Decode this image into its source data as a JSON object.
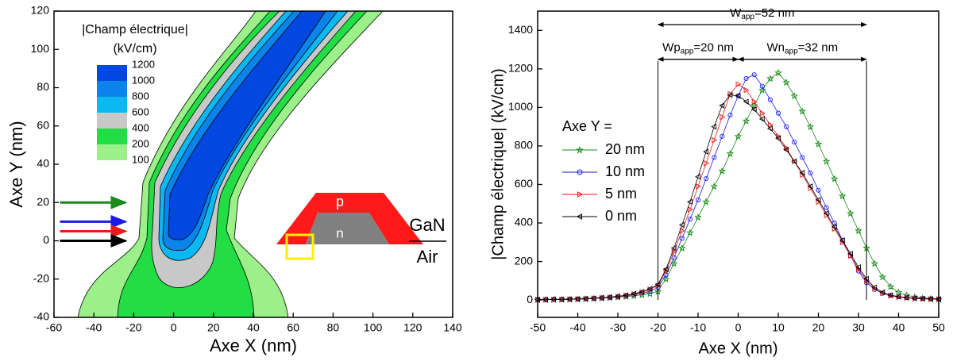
{
  "chart_data": [
    {
      "type": "contour",
      "xlabel": "Axe X (nm)",
      "ylabel": "Axe Y (nm)",
      "xlim": [
        -60,
        140
      ],
      "xticks": [
        -60,
        -40,
        -20,
        0,
        20,
        40,
        60,
        80,
        100,
        120,
        140
      ],
      "ylim": [
        -40,
        120
      ],
      "yticks": [
        -40,
        -20,
        0,
        20,
        40,
        60,
        80,
        100,
        120
      ],
      "legend_title": [
        "|Champ électrique|",
        "(kV/cm)"
      ],
      "levels": [
        1200,
        1000,
        800,
        600,
        400,
        200,
        100
      ],
      "colors": [
        "#0048e0",
        "#0a84ea",
        "#0bb8f2",
        "#c8c8c8",
        "#22dd44",
        "#9bf08a"
      ],
      "cut_lines": [
        {
          "y": 20,
          "color": "#1a8a1a"
        },
        {
          "y": 10,
          "color": "#1a1aee"
        },
        {
          "y": 5,
          "color": "#ee1a1a"
        },
        {
          "y": 0,
          "color": "#000000"
        }
      ],
      "inset": {
        "top": "p",
        "core": "n",
        "above": "GaN",
        "below": "Air"
      }
    },
    {
      "type": "line",
      "xlabel": "Axe X (nm)",
      "ylabel": "|Champ électrique| (kV/cm)",
      "xlim": [
        -50,
        50
      ],
      "xticks": [
        -50,
        -40,
        -30,
        -20,
        -10,
        0,
        10,
        20,
        30,
        40,
        50
      ],
      "ylim": [
        -90,
        1500
      ],
      "yticks": [
        0,
        200,
        400,
        600,
        800,
        1000,
        1200,
        1400
      ],
      "legend_title": "Axe Y =",
      "x": [
        -50,
        -48,
        -46,
        -44,
        -42,
        -40,
        -38,
        -36,
        -34,
        -32,
        -30,
        -28,
        -26,
        -24,
        -22,
        -20,
        -18,
        -16,
        -14,
        -12,
        -10,
        -8,
        -6,
        -4,
        -2,
        0,
        2,
        4,
        6,
        8,
        10,
        12,
        14,
        16,
        18,
        20,
        22,
        24,
        26,
        28,
        30,
        32,
        34,
        36,
        38,
        40,
        42,
        44,
        46,
        48,
        50
      ],
      "series": [
        {
          "name": "20 nm",
          "color": "#1a8a1a",
          "marker": "star",
          "values": [
            2,
            2,
            3,
            3,
            4,
            5,
            6,
            8,
            10,
            12,
            15,
            18,
            22,
            27,
            33,
            45,
            110,
            190,
            270,
            350,
            430,
            510,
            590,
            670,
            760,
            850,
            930,
            1010,
            1090,
            1150,
            1180,
            1130,
            1060,
            980,
            900,
            810,
            720,
            630,
            540,
            450,
            360,
            270,
            190,
            120,
            70,
            40,
            25,
            16,
            10,
            7,
            5
          ]
        },
        {
          "name": "10 nm",
          "color": "#1a1aee",
          "marker": "circle",
          "values": [
            2,
            2,
            3,
            3,
            4,
            5,
            6,
            8,
            10,
            13,
            17,
            22,
            28,
            36,
            45,
            65,
            130,
            220,
            320,
            420,
            520,
            630,
            740,
            850,
            960,
            1060,
            1150,
            1170,
            1110,
            1040,
            970,
            900,
            820,
            740,
            660,
            570,
            480,
            400,
            310,
            230,
            150,
            90,
            55,
            35,
            25,
            18,
            13,
            10,
            8,
            6,
            5
          ]
        },
        {
          "name": "5 nm",
          "color": "#ee1a1a",
          "marker": "triangle-right",
          "values": [
            2,
            2,
            3,
            3,
            4,
            5,
            7,
            9,
            11,
            14,
            18,
            24,
            31,
            40,
            55,
            75,
            150,
            250,
            360,
            470,
            590,
            710,
            830,
            950,
            1070,
            1120,
            1090,
            1030,
            970,
            910,
            850,
            790,
            720,
            650,
            580,
            510,
            440,
            370,
            300,
            230,
            160,
            100,
            60,
            35,
            22,
            15,
            11,
            8,
            6,
            5,
            4
          ]
        },
        {
          "name": "0 nm",
          "color": "#000000",
          "marker": "triangle-left",
          "values": [
            2,
            2,
            3,
            3,
            4,
            5,
            7,
            9,
            12,
            15,
            19,
            25,
            33,
            43,
            58,
            80,
            160,
            270,
            390,
            510,
            640,
            770,
            900,
            1010,
            1065,
            1060,
            1030,
            990,
            940,
            890,
            840,
            780,
            720,
            660,
            590,
            520,
            450,
            380,
            310,
            240,
            170,
            110,
            65,
            40,
            25,
            17,
            12,
            9,
            7,
            5,
            4
          ]
        }
      ],
      "annotations": [
        {
          "label": "W",
          "sub": "app",
          "text": "=52 nm",
          "x": [
            -20,
            32
          ]
        },
        {
          "label": "Wp",
          "sub": "app",
          "text": "=20 nm",
          "x": [
            -20,
            0
          ]
        },
        {
          "label": "Wn",
          "sub": "app",
          "text": "=32 nm",
          "x": [
            0,
            32
          ]
        }
      ]
    }
  ]
}
